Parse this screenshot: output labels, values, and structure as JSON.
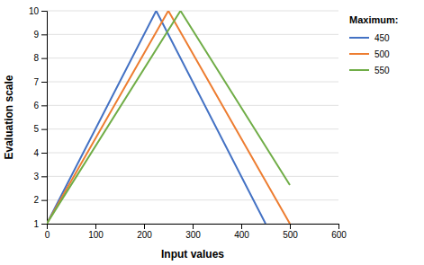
{
  "chart_data": {
    "type": "line",
    "xlabel": "Input values",
    "ylabel": "Evaluation scale",
    "legend_title": "Maximum:",
    "legend": "right",
    "grid": true,
    "xlim": [
      0,
      600
    ],
    "ylim": [
      1,
      10
    ],
    "xticks": [
      0,
      100,
      200,
      300,
      400,
      500,
      600
    ],
    "yticks": [
      1,
      2,
      3,
      4,
      5,
      6,
      7,
      8,
      9,
      10
    ],
    "series": [
      {
        "name": "450",
        "color": "#4472C4",
        "x": [
          0,
          225,
          450
        ],
        "values": [
          1,
          10,
          1
        ]
      },
      {
        "name": "500",
        "color": "#ED7D31",
        "x": [
          0,
          250,
          500
        ],
        "values": [
          1,
          10,
          1
        ]
      },
      {
        "name": "550",
        "color": "#70AD47",
        "x": [
          0,
          275,
          500
        ],
        "values": [
          1,
          10,
          2.636363636
        ]
      }
    ]
  }
}
